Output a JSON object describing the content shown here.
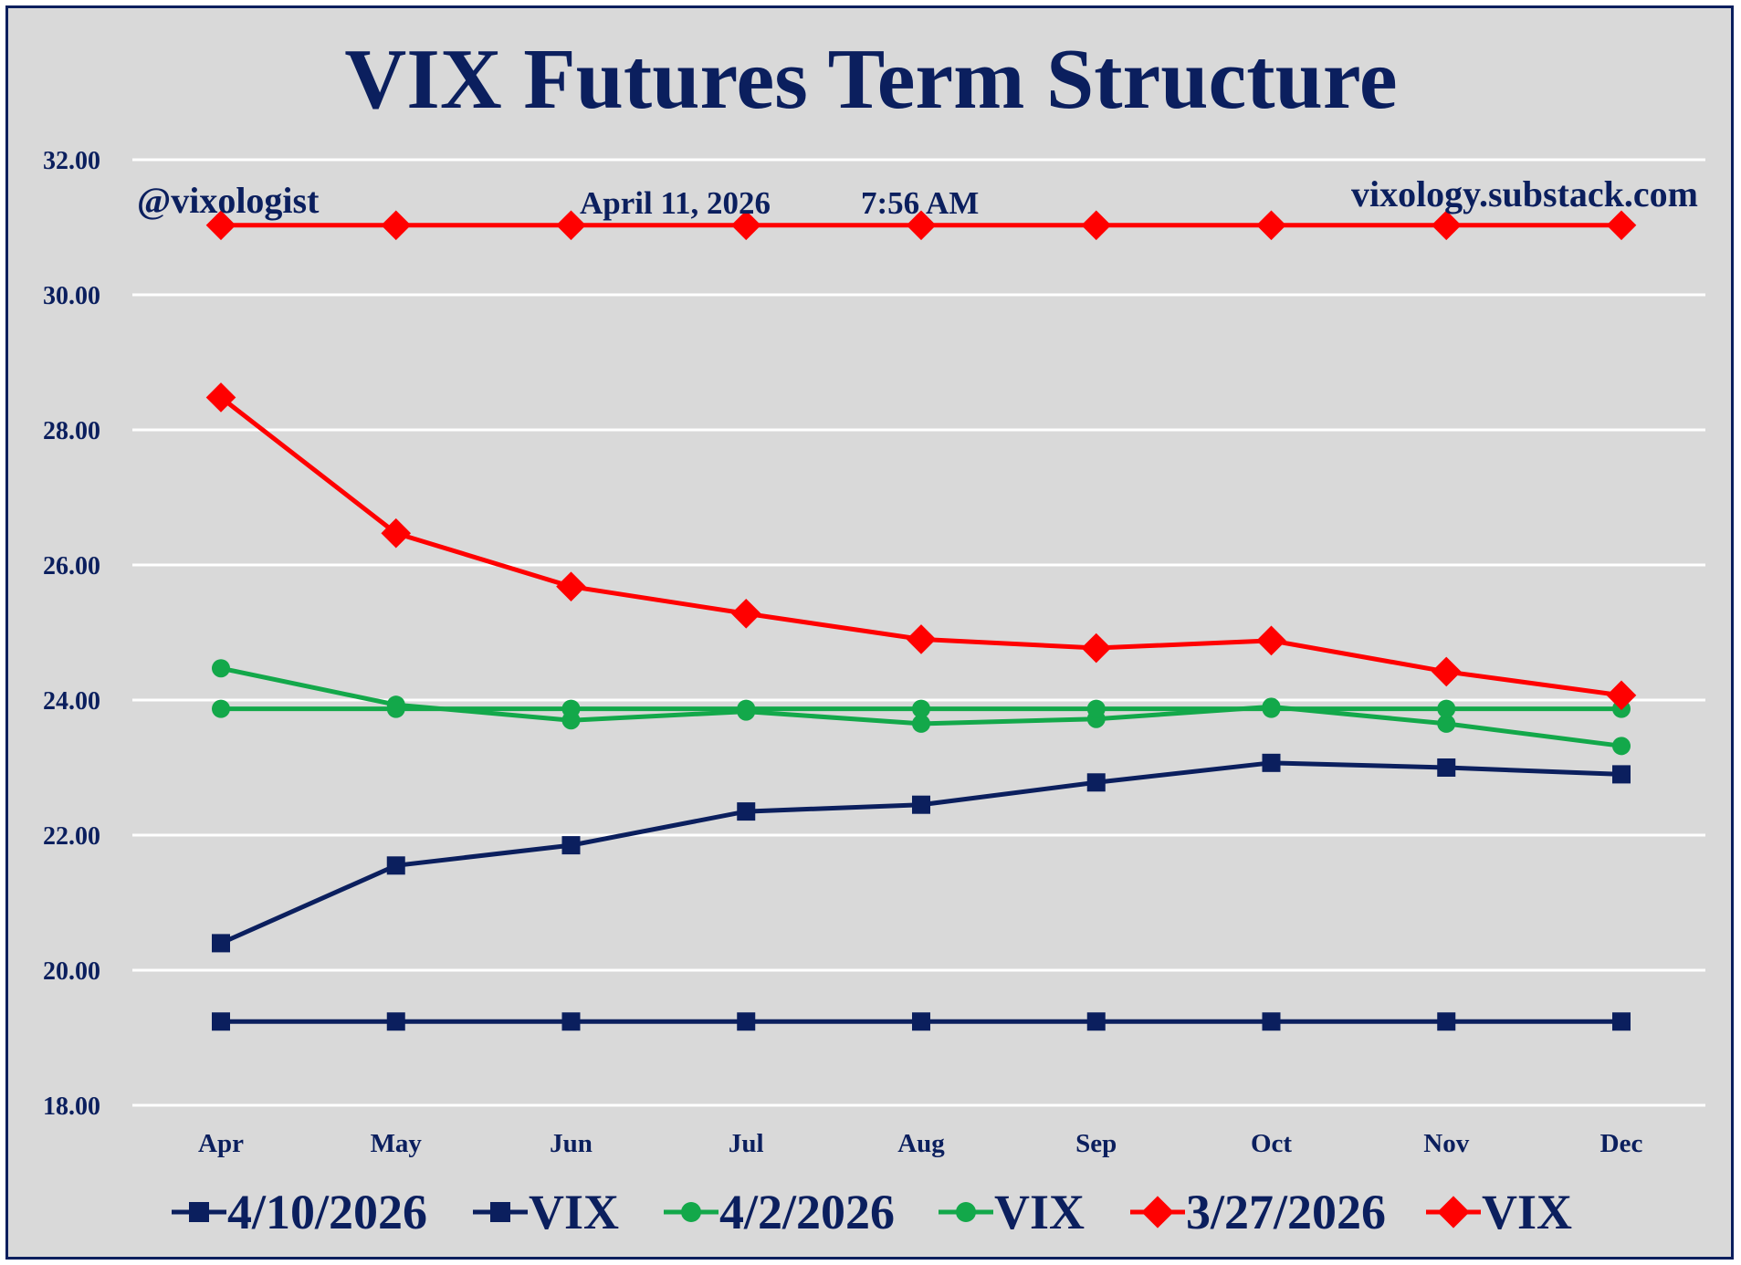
{
  "chart_data": {
    "type": "line",
    "title": "VIX Futures Term Structure",
    "annotations": {
      "handle": "@vixologist",
      "date": "April 11, 2026",
      "time": "7:56 AM",
      "website": "vixology.substack.com"
    },
    "categories": [
      "Apr",
      "May",
      "Jun",
      "Jul",
      "Aug",
      "Sep",
      "Oct",
      "Nov",
      "Dec"
    ],
    "ylim": [
      18,
      32
    ],
    "yticks": [
      "18.00",
      "20.00",
      "22.00",
      "24.00",
      "26.00",
      "28.00",
      "30.00",
      "32.00"
    ],
    "grid": true,
    "legend_position": "bottom",
    "series": [
      {
        "name": "4/10/2026",
        "color": "#0b1f5e",
        "marker": "square",
        "values": [
          20.4,
          21.55,
          21.85,
          22.35,
          22.45,
          22.78,
          23.07,
          23.0,
          22.9
        ]
      },
      {
        "name": "VIX",
        "color": "#0b1f5e",
        "marker": "square",
        "values": [
          19.24,
          19.24,
          19.24,
          19.24,
          19.24,
          19.24,
          19.24,
          19.24,
          19.24
        ]
      },
      {
        "name": "4/2/2026",
        "color": "#13a84a",
        "marker": "circle",
        "values": [
          24.47,
          23.93,
          23.7,
          23.83,
          23.65,
          23.72,
          23.9,
          23.65,
          23.32
        ]
      },
      {
        "name": "VIX",
        "color": "#13a84a",
        "marker": "circle",
        "values": [
          23.87,
          23.87,
          23.87,
          23.87,
          23.87,
          23.87,
          23.87,
          23.87,
          23.87
        ]
      },
      {
        "name": "3/27/2026",
        "color": "#ff0000",
        "marker": "diamond",
        "values": [
          28.48,
          26.47,
          25.68,
          25.28,
          24.9,
          24.77,
          24.88,
          24.42,
          24.07
        ]
      },
      {
        "name": "VIX",
        "color": "#ff0000",
        "marker": "diamond",
        "values": [
          31.03,
          31.03,
          31.03,
          31.03,
          31.03,
          31.03,
          31.03,
          31.03,
          31.03
        ]
      }
    ]
  }
}
